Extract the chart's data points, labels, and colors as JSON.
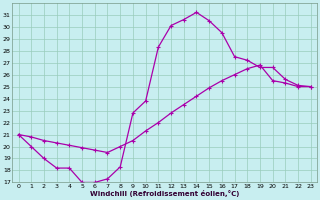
{
  "xlabel": "Windchill (Refroidissement éolien,°C)",
  "xlim": [
    -0.5,
    23.5
  ],
  "ylim": [
    17,
    32
  ],
  "yticks": [
    17,
    18,
    19,
    20,
    21,
    22,
    23,
    24,
    25,
    26,
    27,
    28,
    29,
    30,
    31
  ],
  "xticks": [
    0,
    1,
    2,
    3,
    4,
    5,
    6,
    7,
    8,
    9,
    10,
    11,
    12,
    13,
    14,
    15,
    16,
    17,
    18,
    19,
    20,
    21,
    22,
    23
  ],
  "bg_color": "#c8eef0",
  "line_color": "#aa00aa",
  "grid_color": "#99ccbb",
  "line1_x": [
    0,
    1,
    2,
    3,
    4,
    5,
    6,
    7,
    8,
    9,
    10,
    11,
    12,
    13,
    14,
    15,
    16,
    17,
    18,
    19,
    20,
    21,
    22,
    23
  ],
  "line1_y": [
    21.0,
    20.0,
    19.0,
    18.2,
    18.2,
    17.0,
    17.0,
    17.3,
    18.3,
    22.8,
    23.8,
    28.3,
    30.1,
    30.6,
    31.2,
    30.5,
    29.5,
    27.5,
    27.2,
    26.6,
    26.6,
    25.6,
    25.1,
    25.0
  ],
  "line2_x": [
    0,
    1,
    2,
    3,
    4,
    5,
    6,
    7,
    8,
    9,
    10,
    11,
    12,
    13,
    14,
    15,
    16,
    17,
    18,
    19,
    20,
    21,
    22,
    23
  ],
  "line2_y": [
    21.0,
    20.8,
    20.5,
    20.3,
    20.1,
    19.9,
    19.7,
    19.5,
    20.0,
    20.5,
    21.3,
    22.0,
    22.8,
    23.5,
    24.2,
    24.9,
    25.5,
    26.0,
    26.5,
    26.8,
    25.5,
    25.3,
    25.0,
    25.0
  ]
}
